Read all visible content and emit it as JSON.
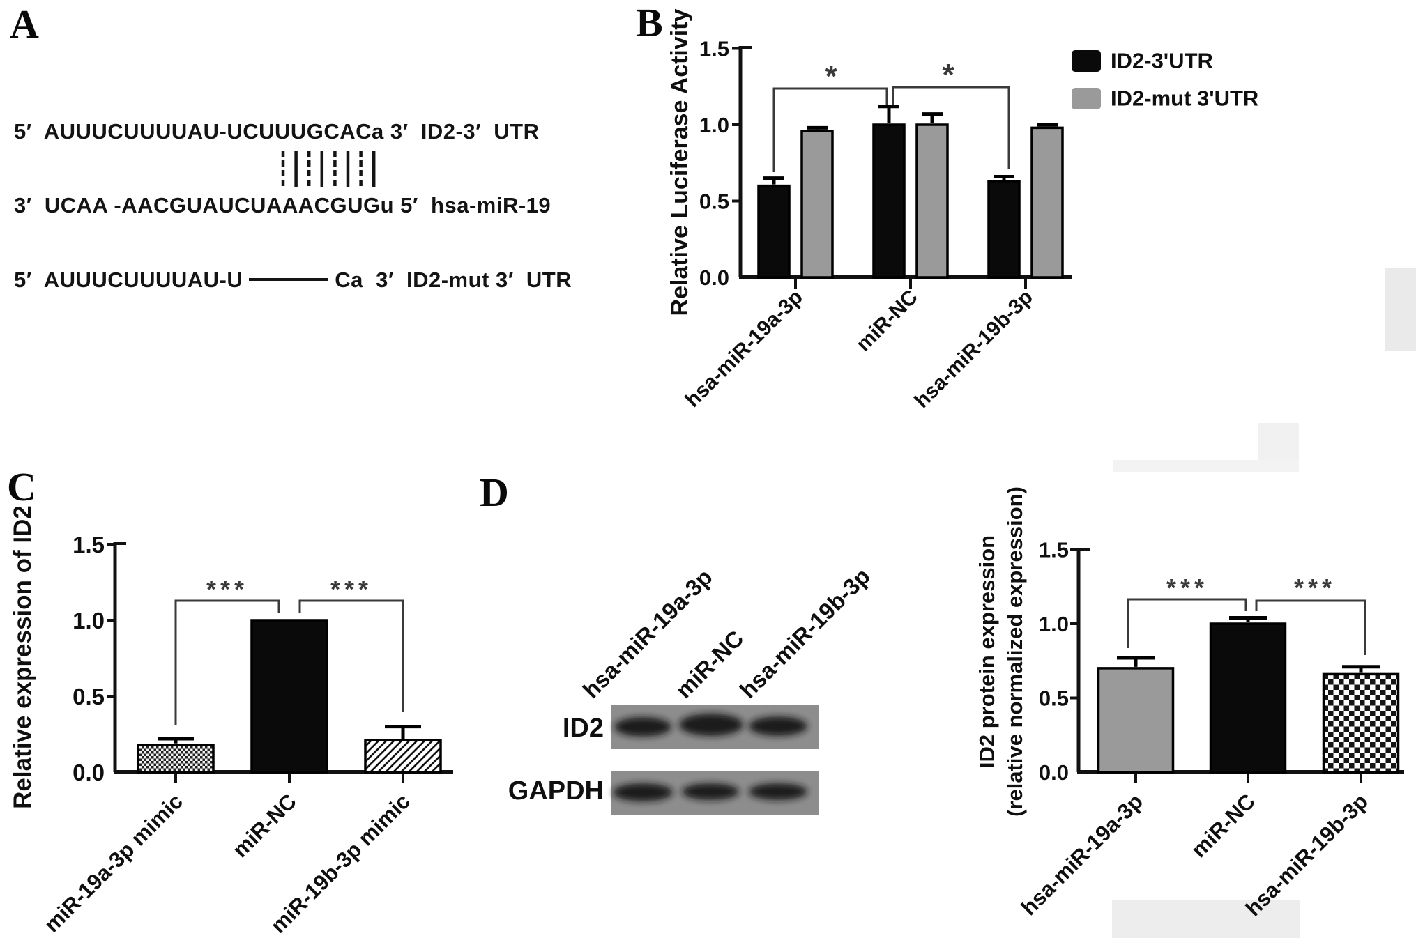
{
  "figure": {
    "panel_labels": {
      "a": "A",
      "b": "B",
      "c": "C",
      "d": "D"
    }
  },
  "panel_a": {
    "target_strand": "5′  AUUUCUUUUAU-UCUUUGCACa 3′  ID2-3′  UTR",
    "pairing_bar_count": 8,
    "mirna_strand": "3′  UCAA -AACGUAUCUAAACGUGu 5′  hsa-miR-19",
    "mutant_strand_prefix": "5′  AUUUCUUUUAU-U",
    "mutant_strand_suffix": "Ca  3′  ID2-mut 3′  UTR"
  },
  "chart_data": [
    {
      "id": "luciferase",
      "panel": "B",
      "type": "bar",
      "ylabel": "Relative Luciferase Activity",
      "ylim": [
        0,
        1.5
      ],
      "yticks": [
        0,
        0.5,
        1.0,
        1.5
      ],
      "grid": false,
      "legend_position": "top-right",
      "categories": [
        "hsa-miR-19a-3p",
        "miR-NC",
        "hsa-miR-19b-3p"
      ],
      "series": [
        {
          "name": "ID2-3'UTR",
          "fill": "black",
          "values": [
            0.6,
            1.0,
            0.63
          ],
          "errors": [
            0.05,
            0.12,
            0.03
          ]
        },
        {
          "name": "ID2-mut 3'UTR",
          "fill": "gray",
          "values": [
            0.96,
            1.0,
            0.98
          ],
          "errors": [
            0.02,
            0.07,
            0.02
          ]
        }
      ],
      "significance": [
        {
          "groups": [
            "hsa-miR-19a-3p",
            "miR-NC"
          ],
          "label": "*"
        },
        {
          "groups": [
            "miR-NC",
            "hsa-miR-19b-3p"
          ],
          "label": "*"
        }
      ]
    },
    {
      "id": "id2_mrna",
      "panel": "C",
      "type": "bar",
      "ylabel": "Relative expression of ID2",
      "ylim": [
        0,
        1.5
      ],
      "yticks": [
        0,
        0.5,
        1.0,
        1.5
      ],
      "grid": false,
      "categories": [
        "miR-19a-3p mimic",
        "miR-NC",
        "miR-19b-3p mimic"
      ],
      "series": [
        {
          "name": "Relative expression of ID2",
          "fills": [
            "stipple",
            "black",
            "diag"
          ],
          "values": [
            0.18,
            1.0,
            0.21
          ],
          "errors": [
            0.04,
            0,
            0.09
          ]
        }
      ],
      "significance": [
        {
          "groups": [
            "miR-19a-3p mimic",
            "miR-NC"
          ],
          "label": "***"
        },
        {
          "groups": [
            "miR-NC",
            "miR-19b-3p mimic"
          ],
          "label": "***"
        }
      ]
    },
    {
      "id": "id2_protein",
      "panel": "D",
      "type": "bar",
      "ylabel_lines": [
        "ID2 protein expression",
        "(relative normalized expression)"
      ],
      "ylim": [
        0,
        1.5
      ],
      "yticks": [
        0,
        0.5,
        1.0,
        1.5
      ],
      "grid": false,
      "categories": [
        "hsa-miR-19a-3p",
        "miR-NC",
        "hsa-miR-19b-3p"
      ],
      "series": [
        {
          "name": "ID2 protein expression",
          "fills": [
            "gray",
            "black",
            "checker"
          ],
          "values": [
            0.7,
            1.0,
            0.66
          ],
          "errors": [
            0.07,
            0.04,
            0.05
          ]
        }
      ],
      "significance": [
        {
          "groups": [
            "hsa-miR-19a-3p",
            "miR-NC"
          ],
          "label": "***"
        },
        {
          "groups": [
            "miR-NC",
            "hsa-miR-19b-3p"
          ],
          "label": "***"
        }
      ]
    }
  ],
  "western_blot": {
    "lane_labels": [
      "hsa-miR-19a-3p",
      "miR-NC",
      "hsa-miR-19b-3p"
    ],
    "rows": [
      {
        "protein": "ID2"
      },
      {
        "protein": "GAPDH"
      }
    ]
  },
  "colors": {
    "black_bar": "#0a0a0a",
    "gray_bar": "#9a9a9a",
    "axis": "#111111",
    "bracket": "#3a3a3a",
    "blot_bg": "#8d8d8d",
    "blot_band": "#141414"
  }
}
